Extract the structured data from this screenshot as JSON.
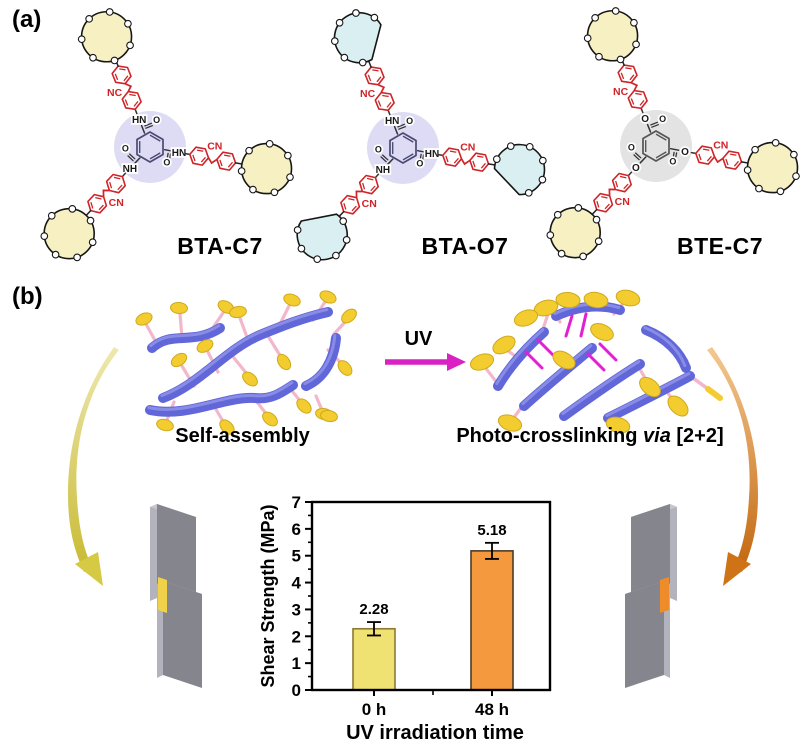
{
  "figure": {
    "panel_a_label": "(a)",
    "panel_b_label": "(b)"
  },
  "molecules": [
    {
      "name": "BTA-C7",
      "linker_labels": [
        "HN",
        "HN",
        "NH"
      ],
      "carbonyl_label": "O",
      "cn_labels": [
        "NC",
        "CN",
        "CN"
      ],
      "crown": "closed",
      "crown_fill": "#f6f0c3",
      "highlight": "#dedcf4",
      "core_color": "#4a4a72"
    },
    {
      "name": "BTA-O7",
      "linker_labels": [
        "HN",
        "HN",
        "NH"
      ],
      "carbonyl_label": "O",
      "cn_labels": [
        "NC",
        "CN",
        "CN"
      ],
      "crown": "open",
      "crown_fill": "#d9eff2",
      "highlight": "#dedcf4",
      "core_color": "#4a4a72"
    },
    {
      "name": "BTE-C7",
      "linker_labels": [
        "O",
        "O",
        "O"
      ],
      "carbonyl_label": "O",
      "cn_labels": [
        "NC",
        "CN",
        "CN"
      ],
      "crown": "closed",
      "crown_fill": "#f6f0c3",
      "highlight": "#e3e3e3",
      "core_color": "#555555"
    }
  ],
  "scheme": {
    "self_assembly_label": "Self-assembly",
    "uv_label": "UV",
    "crosslink_pre": "Photo-crosslinking ",
    "crosslink_italic": "via",
    "crosslink_post": " [2+2]"
  },
  "chart_data": {
    "type": "bar",
    "categories": [
      "0 h",
      "48 h"
    ],
    "values": [
      2.28,
      5.18
    ],
    "errors": [
      0.25,
      0.3
    ],
    "value_labels": [
      "2.28",
      "5.18"
    ],
    "bar_fills": [
      "#f0e173",
      "#f4993d"
    ],
    "bar_edges": [
      "#8a7a35",
      "#4a3b26"
    ],
    "title": "",
    "xlabel": "UV irradiation time",
    "ylabel": "Shear Strength (MPa)",
    "ylim": [
      0,
      7
    ],
    "ytick_step": 1,
    "grid": false,
    "legend": "none"
  },
  "colors": {
    "arm_red": "#cf2428",
    "chem_black": "#1a1a1a",
    "tube_blue": "#6167d8",
    "tube_sheen": "#989ced",
    "stick_pink": "#f2b7cb",
    "disc_yellow": "#f3cc2f",
    "disc_edge": "#cfa91c",
    "crosslink_magenta": "#e41fd3",
    "uv_arrow": "#d921c4",
    "plate_front": "#85858d",
    "plate_side": "#b3b3bd",
    "plate_top": "#c6c6d0",
    "adhesive_yellow": "#f0d24a",
    "adhesive_orange": "#ef8c2a",
    "swoosh_yellow_light": "#eee8b0",
    "swoosh_yellow_dark": "#c8ba32",
    "swoosh_orange_light": "#f4c890",
    "swoosh_orange_dark": "#c2660f"
  }
}
